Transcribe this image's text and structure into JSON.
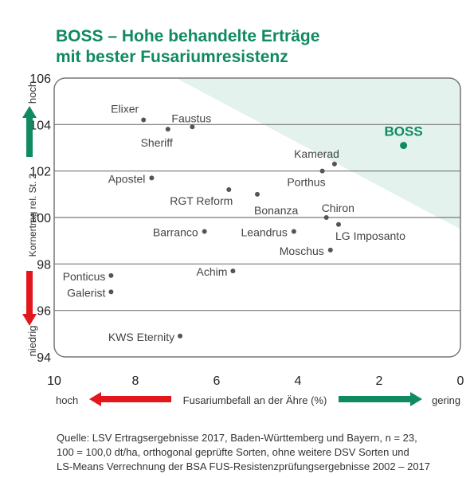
{
  "title": {
    "line1": "BOSS – Hohe behandelte Erträge",
    "line2": "mit bester Fusariumresistenz"
  },
  "chart_data": {
    "type": "scatter",
    "xlabel": "Fusariumbefall an der Ähre (%)",
    "ylabel": "Kornertrag rel. St. 2",
    "xlim": [
      10,
      0
    ],
    "ylim": [
      94,
      106
    ],
    "x_ticks": [
      "10",
      "8",
      "6",
      "4",
      "2",
      "0"
    ],
    "y_ticks": [
      "94",
      "96",
      "98",
      "100",
      "102",
      "104",
      "106"
    ],
    "grid": true,
    "y_arrow_top": "hoch",
    "y_arrow_bottom": "niedrig",
    "x_arrow_left": "hoch",
    "x_arrow_right": "gering",
    "colors": {
      "green": "#0f8a63",
      "red": "#e3161b",
      "highlight_zone": "#e3f2ed",
      "point": "#555555"
    },
    "points": [
      {
        "name": "Elixer",
        "x": 7.8,
        "y": 104.2
      },
      {
        "name": "Faustus",
        "x": 6.6,
        "y": 103.9
      },
      {
        "name": "Sheriff",
        "x": 7.2,
        "y": 103.8
      },
      {
        "name": "BOSS",
        "x": 1.4,
        "y": 103.1,
        "highlight": true
      },
      {
        "name": "Kamerad",
        "x": 3.1,
        "y": 102.3
      },
      {
        "name": "Porthus",
        "x": 3.4,
        "y": 102.0
      },
      {
        "name": "Apostel",
        "x": 7.6,
        "y": 101.7
      },
      {
        "name": "RGT Reform",
        "x": 5.7,
        "y": 101.2
      },
      {
        "name": "Bonanza",
        "x": 5.0,
        "y": 101.0
      },
      {
        "name": "Chiron",
        "x": 3.3,
        "y": 100.0
      },
      {
        "name": "LG Imposanto",
        "x": 3.0,
        "y": 99.7
      },
      {
        "name": "Barranco",
        "x": 6.3,
        "y": 99.4
      },
      {
        "name": "Leandrus",
        "x": 4.1,
        "y": 99.4
      },
      {
        "name": "Moschus",
        "x": 3.2,
        "y": 98.6
      },
      {
        "name": "Achim",
        "x": 5.6,
        "y": 97.7
      },
      {
        "name": "Ponticus",
        "x": 8.6,
        "y": 97.5
      },
      {
        "name": "Galerist",
        "x": 8.6,
        "y": 96.8
      },
      {
        "name": "KWS Eternity",
        "x": 6.9,
        "y": 94.9
      }
    ]
  },
  "source": {
    "line1": "Quelle: LSV Ertragsergebnisse 2017, Baden-Württemberg und Bayern, n = 23,",
    "line2": "100 = 100,0 dt/ha, orthogonal geprüfte Sorten, ohne weitere DSV Sorten und",
    "line3": "LS-Means Verrechnung der BSA FUS-Resistenzprüfungsergebnisse 2002 – 2017"
  }
}
